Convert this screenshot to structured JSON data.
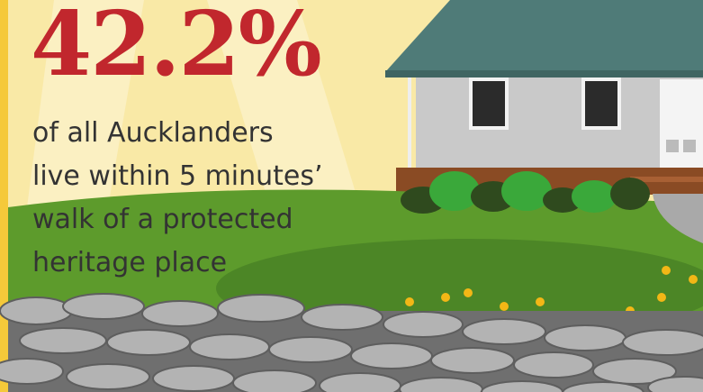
{
  "headline": {
    "stat": "42.2%",
    "lines": [
      "of all Aucklanders",
      "live within 5 minutes’",
      "walk of a protected",
      "heritage place"
    ]
  }
}
